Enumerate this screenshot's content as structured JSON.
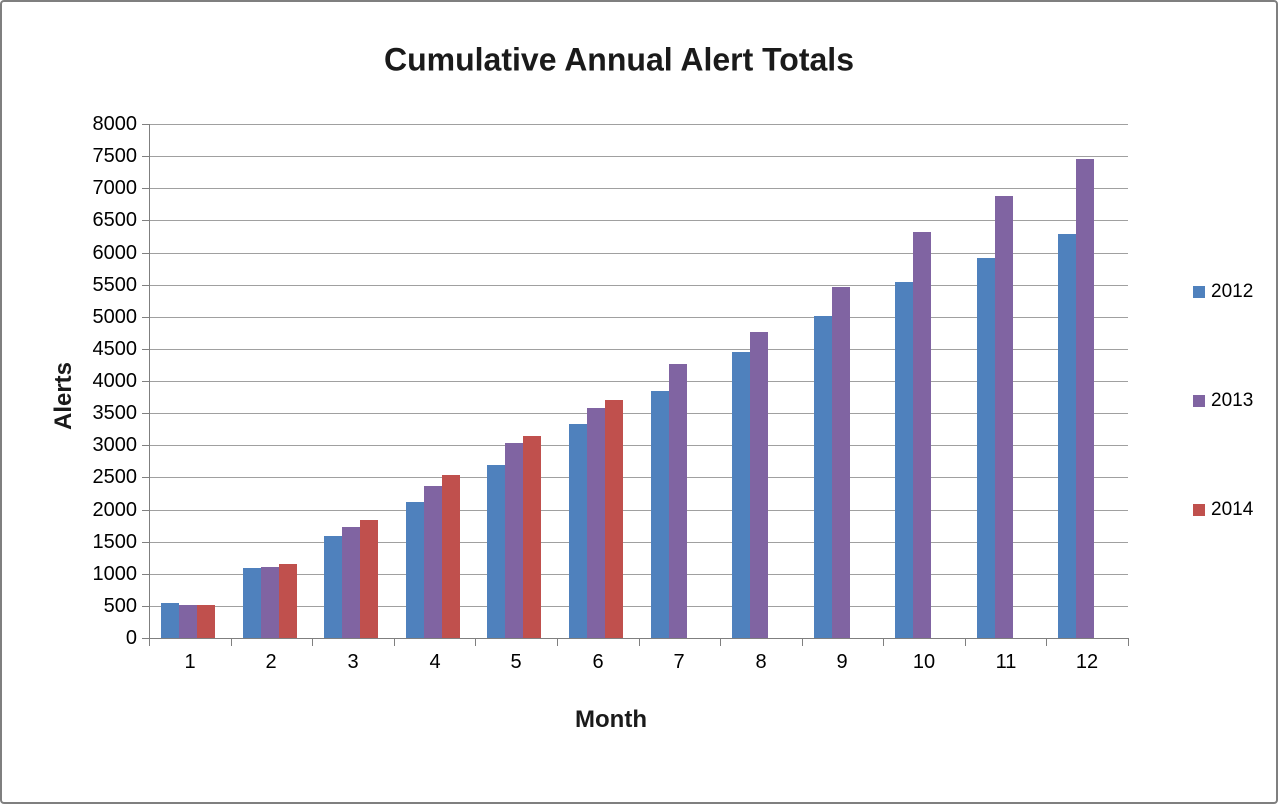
{
  "chart_data": {
    "type": "bar",
    "title": "Cumulative Annual Alert Totals",
    "xlabel": "Month",
    "ylabel": "Alerts",
    "categories": [
      "1",
      "2",
      "3",
      "4",
      "5",
      "6",
      "7",
      "8",
      "9",
      "10",
      "11",
      "12"
    ],
    "series": [
      {
        "name": "2012",
        "color": "#4f81bd",
        "values": [
          540,
          1090,
          1580,
          2110,
          2690,
          3330,
          3840,
          4450,
          5010,
          5540,
          5910,
          6290
        ]
      },
      {
        "name": "2013",
        "color": "#8064a2",
        "values": [
          510,
          1110,
          1720,
          2370,
          3030,
          3580,
          4270,
          4760,
          5470,
          6320,
          6880,
          7450
        ]
      },
      {
        "name": "2014",
        "color": "#c0504d",
        "values": [
          520,
          1150,
          1840,
          2530,
          3140,
          3700,
          null,
          null,
          null,
          null,
          null,
          null
        ]
      }
    ],
    "ylim": [
      0,
      8000
    ],
    "ytick_step": 500,
    "yticks": [
      0,
      500,
      1000,
      1500,
      2000,
      2500,
      3000,
      3500,
      4000,
      4500,
      5000,
      5500,
      6000,
      6500,
      7000,
      7500,
      8000
    ],
    "grid": true,
    "legend_position": "right",
    "gridline_color": "#a0a0a0",
    "axis_color": "#7f7f7f",
    "frame_border_color": "#7f7f7f"
  }
}
